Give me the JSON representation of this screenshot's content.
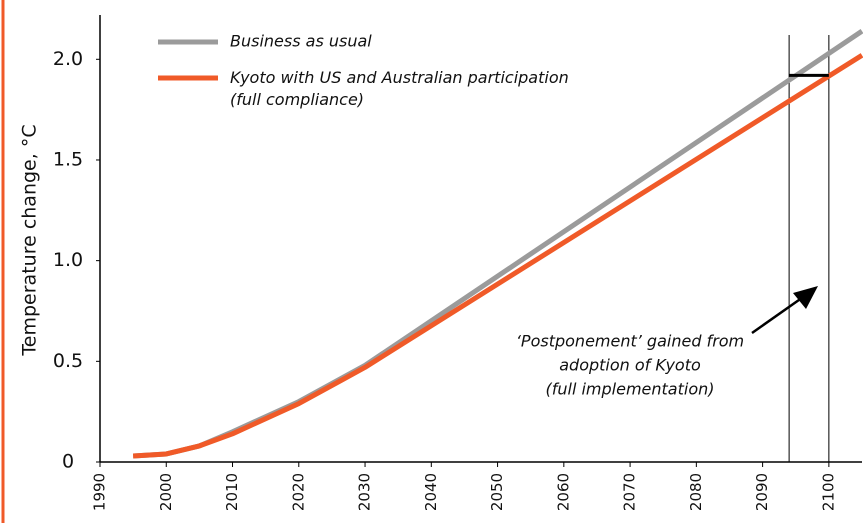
{
  "chart_data": {
    "type": "line",
    "ylabel": "Temperature change, °C",
    "x": [
      1995,
      2000,
      2005,
      2010,
      2020,
      2030,
      2105
    ],
    "series": [
      {
        "name": "Business as usual",
        "color": "#9b9b9b",
        "values": [
          0.03,
          0.04,
          0.08,
          0.15,
          0.3,
          0.48,
          2.14
        ]
      },
      {
        "name": "Kyoto with US and Australian participation (full compliance)",
        "color": "#f05a28",
        "values": [
          0.03,
          0.04,
          0.08,
          0.14,
          0.29,
          0.47,
          2.02
        ]
      }
    ],
    "xlim": [
      1990,
      2105
    ],
    "xticks": [
      1990,
      2000,
      2010,
      2020,
      2030,
      2040,
      2050,
      2060,
      2070,
      2080,
      2090,
      2100
    ],
    "ylim": [
      0,
      2.22
    ],
    "yticks": [
      0,
      0.5,
      {
        "value": 1,
        "label": "1.0"
      },
      1.5,
      {
        "value": 2,
        "label": "2.0"
      }
    ],
    "legend": "upper left",
    "postponement": {
      "x": [
        2094,
        2100
      ],
      "y": 1.92
    },
    "annotation": [
      "‘Postponement’ gained from",
      "adoption of Kyoto",
      "(full implementation)"
    ]
  }
}
